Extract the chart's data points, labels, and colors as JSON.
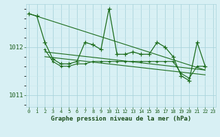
{
  "x": [
    0,
    1,
    2,
    3,
    4,
    5,
    6,
    7,
    8,
    9,
    10,
    11,
    12,
    13,
    14,
    15,
    16,
    17,
    18,
    19,
    20,
    21,
    22,
    23
  ],
  "line_main": [
    1012.7,
    1012.65,
    1012.1,
    1011.75,
    1011.65,
    1011.65,
    1011.7,
    1012.1,
    1012.05,
    1011.95,
    1012.8,
    1011.85,
    1011.85,
    1011.9,
    1011.85,
    1011.85,
    1012.1,
    1012.0,
    1011.8,
    1011.4,
    1011.3,
    1012.1,
    1011.6,
    null
  ],
  "line_secondary": [
    null,
    null,
    1011.95,
    1011.7,
    1011.6,
    1011.6,
    1011.65,
    1011.65,
    1011.7,
    1011.7,
    1011.7,
    1011.7,
    1011.7,
    1011.7,
    1011.7,
    1011.7,
    1011.7,
    1011.7,
    1011.7,
    1011.45,
    1011.35,
    1011.6,
    1011.6,
    null
  ],
  "trend1_x": [
    0,
    22
  ],
  "trend1_y": [
    1012.7,
    1011.52
  ],
  "trend2_x": [
    2,
    22
  ],
  "trend2_y": [
    1011.9,
    1011.52
  ],
  "trend3_x": [
    2,
    22
  ],
  "trend3_y": [
    1011.8,
    1011.42
  ],
  "ylim": [
    1010.75,
    1012.9
  ],
  "yticks": [
    1011.0,
    1012.0
  ],
  "xlim": [
    -0.3,
    23.3
  ],
  "xlabel": "Graphe pression niveau de la mer (hPa)",
  "bg_color": "#d8f0f4",
  "grid_major_color": "#aad4dc",
  "grid_minor_color": "#c8e8ee",
  "line_color": "#1a6b1a",
  "text_color": "#1a5c1a",
  "xlabel_color": "#1a4d1a"
}
